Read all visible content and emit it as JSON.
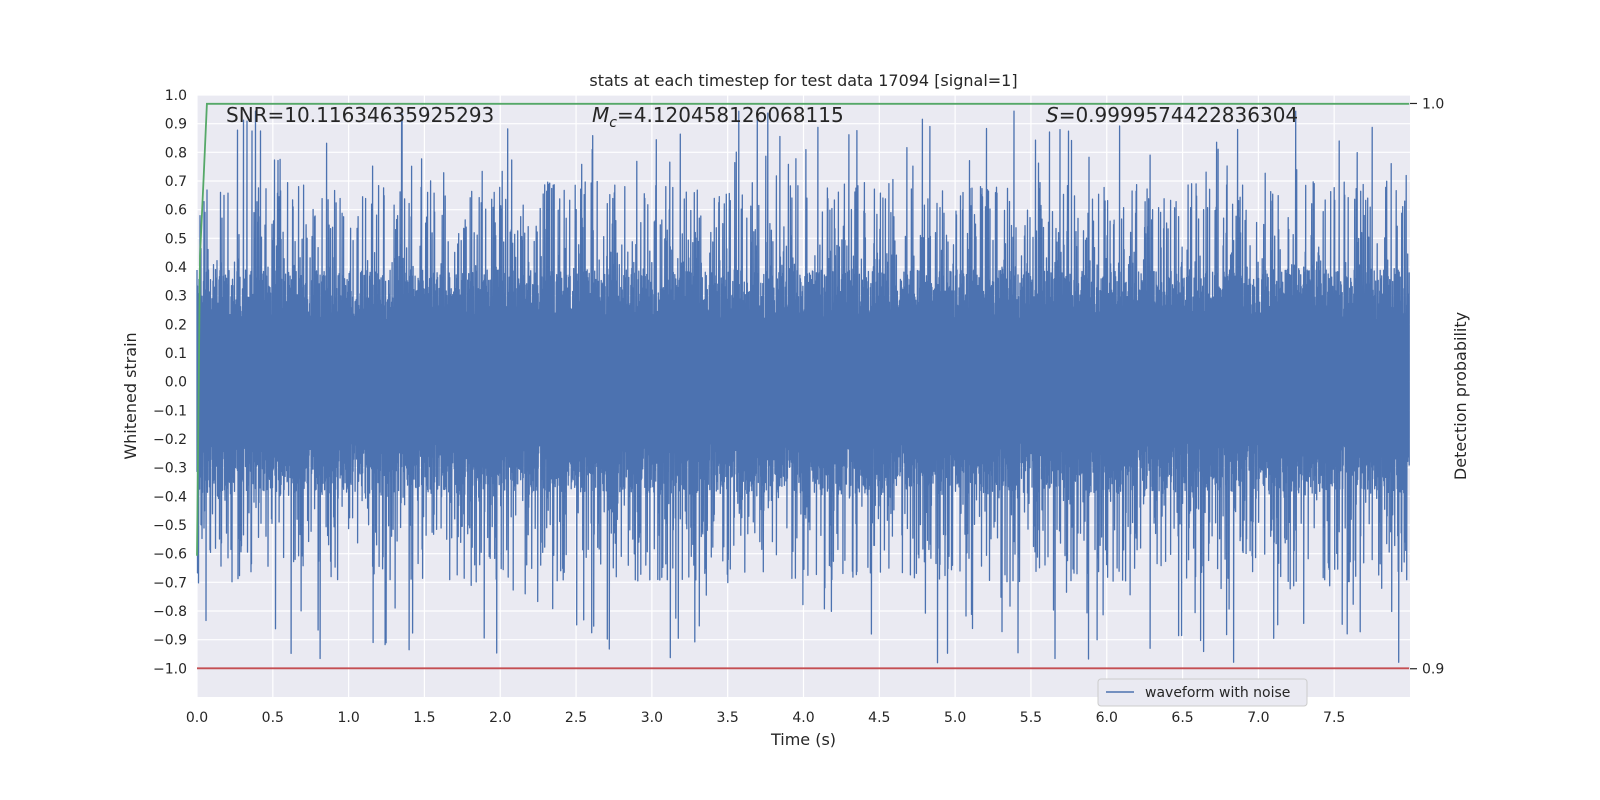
{
  "chart_data": {
    "type": "line",
    "title": "stats at each timestep for test data 17094 [signal=1]",
    "xlabel": "Time (s)",
    "ylabel": "Whitened strain",
    "y2label": "Detection probability",
    "xlim": [
      0.0,
      8.0
    ],
    "ylim": [
      -1.1,
      1.0
    ],
    "y2lim": [
      0.895,
      1.0015
    ],
    "xticks": [
      "0.0",
      "0.5",
      "1.0",
      "1.5",
      "2.0",
      "2.5",
      "3.0",
      "3.5",
      "4.0",
      "4.5",
      "5.0",
      "5.5",
      "6.0",
      "6.5",
      "7.0",
      "7.5"
    ],
    "yticks": [
      "1.0",
      "0.9",
      "0.8",
      "0.7",
      "0.6",
      "0.5",
      "0.4",
      "0.3",
      "0.2",
      "0.1",
      "0.0",
      "−0.1",
      "−0.2",
      "−0.3",
      "−0.4",
      "−0.5",
      "−0.6",
      "−0.7",
      "−0.8",
      "−0.9",
      "−1.0"
    ],
    "y2ticks": [
      "1.0",
      "0.9"
    ],
    "grid": true,
    "legend_position": "lower-right",
    "annotations": {
      "snr": "SNR=10.11634635925293",
      "mc_symbol": "M",
      "mc_sub": "c",
      "mc_value": "=4.120458126068115",
      "s_symbol": "S",
      "s_value": "=0.9999574422836304"
    },
    "series": [
      {
        "name": "waveform with noise",
        "axis": "left",
        "color": "#4c72b0",
        "kind": "noise",
        "x_range": [
          0.0,
          7.995
        ],
        "core_amplitude": 0.3,
        "peak_max": 0.95,
        "peak_min": -1.0
      },
      {
        "axis": "right",
        "color": "#55a868",
        "points": [
          [
            0.0,
            0.92
          ],
          [
            0.02,
            0.973
          ],
          [
            0.045,
            0.9875
          ],
          [
            0.065,
            0.99995
          ],
          [
            7.995,
            0.99995
          ]
        ]
      },
      {
        "axis": "left",
        "color": "#c44e52",
        "points": [
          [
            0.0,
            -1.0
          ],
          [
            7.995,
            -1.0
          ]
        ]
      }
    ],
    "colors": {
      "axes_background": "#eaeaf2",
      "grid": "#ffffff",
      "text": "#262626"
    }
  }
}
